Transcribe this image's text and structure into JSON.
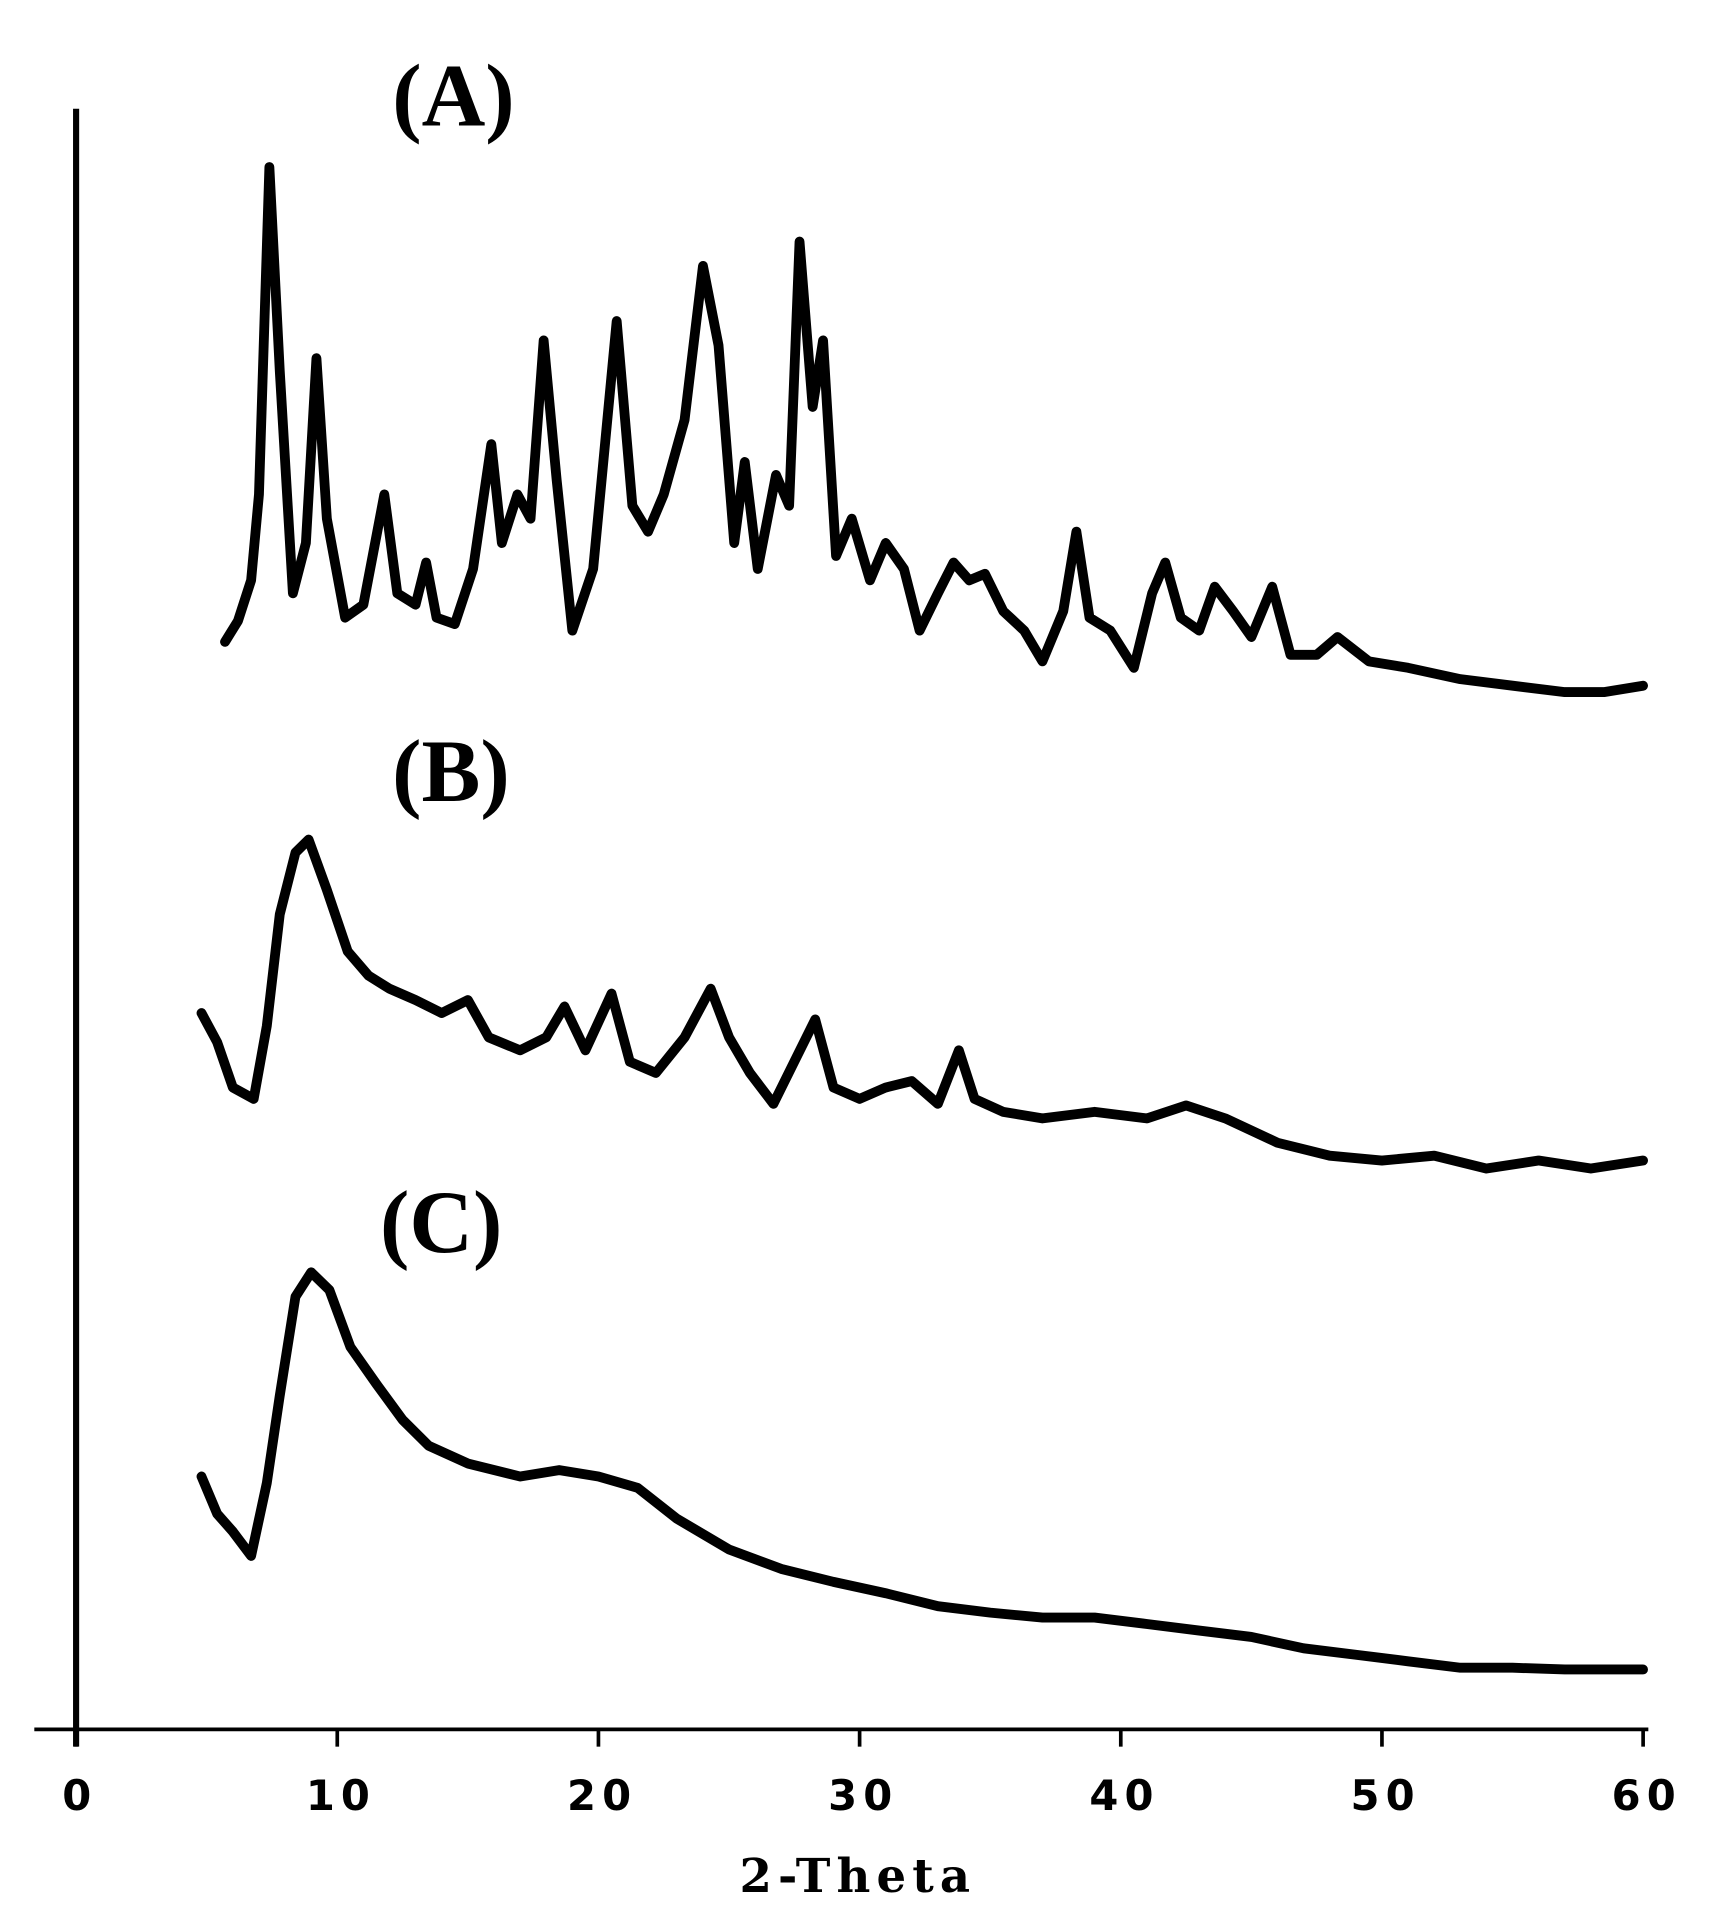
{
  "chart_data": {
    "type": "line",
    "x_label": "2-Theta",
    "xlim": [
      -1.6,
      60.2
    ],
    "xticks": [
      0,
      10,
      20,
      30,
      40,
      50,
      60
    ],
    "ylim": [
      0,
      100
    ],
    "series": [
      {
        "name": "(A)",
        "color": "#000000",
        "x": [
          5.7,
          6.2,
          6.7,
          7.0,
          7.4,
          7.8,
          8.3,
          8.8,
          9.2,
          9.6,
          10.3,
          11.0,
          11.8,
          12.3,
          13.0,
          13.4,
          13.8,
          14.5,
          15.2,
          15.9,
          16.3,
          16.9,
          17.4,
          17.9,
          18.4,
          19.0,
          19.8,
          20.7,
          21.3,
          21.9,
          22.5,
          23.3,
          24.0,
          24.6,
          25.2,
          25.6,
          26.1,
          26.8,
          27.3,
          27.7,
          28.2,
          28.6,
          29.1,
          29.7,
          30.4,
          31.0,
          31.7,
          32.3,
          33.0,
          33.6,
          34.2,
          34.8,
          35.5,
          36.3,
          37.0,
          37.8,
          38.3,
          38.8,
          39.6,
          40.5,
          41.2,
          41.7,
          42.3,
          43.0,
          43.6,
          44.3,
          45.0,
          45.8,
          46.5,
          47.5,
          48.3,
          49.5,
          51,
          53,
          55,
          57,
          58.5,
          60
        ],
        "values": [
          67.1,
          68.4,
          70.9,
          76.2,
          96.4,
          83.8,
          70.1,
          73.2,
          84.6,
          74.7,
          68.6,
          69.4,
          76.2,
          70.1,
          69.4,
          72.0,
          68.6,
          68.2,
          71.6,
          79.3,
          73.2,
          76.2,
          74.7,
          85.7,
          77.1,
          67.8,
          71.6,
          86.9,
          75.5,
          73.9,
          76.2,
          80.8,
          90.3,
          85.4,
          73.2,
          78.2,
          71.6,
          77.4,
          75.5,
          91.8,
          81.6,
          85.7,
          72.4,
          74.7,
          70.9,
          73.2,
          71.6,
          67.8,
          70.1,
          72.0,
          70.9,
          71.3,
          69.0,
          67.8,
          65.9,
          69.0,
          73.9,
          68.6,
          67.8,
          65.5,
          70.1,
          72.0,
          68.6,
          67.8,
          70.5,
          69.0,
          67.4,
          70.5,
          66.3,
          66.3,
          67.4,
          65.9,
          65.5,
          64.8,
          64.4,
          64.0,
          64.0,
          64.4
        ]
      },
      {
        "name": "(B)",
        "color": "#000000",
        "x": [
          4.8,
          5.4,
          6.0,
          6.8,
          7.3,
          7.8,
          8.4,
          8.9,
          9.6,
          10.4,
          11.2,
          12.0,
          13.0,
          14.0,
          15.0,
          15.8,
          17.0,
          18.0,
          18.7,
          19.5,
          20.5,
          21.2,
          22.2,
          23.3,
          24.3,
          25.0,
          25.8,
          26.7,
          27.5,
          28.3,
          29.0,
          30.0,
          31.0,
          32.0,
          33.0,
          33.8,
          34.4,
          35.5,
          37,
          39,
          41,
          42.5,
          44,
          46,
          48,
          50,
          52,
          54,
          56,
          58,
          60
        ],
        "values": [
          44.2,
          42.4,
          39.6,
          38.9,
          43.4,
          50.3,
          54.1,
          54.9,
          51.8,
          48.0,
          46.5,
          45.7,
          45.0,
          44.2,
          45.0,
          42.7,
          41.9,
          42.7,
          44.6,
          41.9,
          45.4,
          41.2,
          40.5,
          42.7,
          45.7,
          42.7,
          40.5,
          38.6,
          41.2,
          43.8,
          39.6,
          38.9,
          39.6,
          40.0,
          38.6,
          41.9,
          38.9,
          38.1,
          37.7,
          38.1,
          37.7,
          38.5,
          37.7,
          36.2,
          35.4,
          35.1,
          35.4,
          34.6,
          35.1,
          34.6,
          35.1
        ]
      },
      {
        "name": "(C)",
        "color": "#000000",
        "x": [
          4.8,
          5.4,
          6.0,
          6.7,
          7.3,
          7.8,
          8.4,
          9.0,
          9.7,
          10.5,
          11.5,
          12.5,
          13.5,
          15,
          17,
          18.5,
          20,
          21.5,
          23,
          25,
          27,
          29,
          31,
          33,
          35,
          37,
          39,
          41,
          43,
          45,
          47,
          49,
          51,
          53,
          55,
          57,
          60
        ],
        "values": [
          15.6,
          13.3,
          12.2,
          10.7,
          15.2,
          20.6,
          26.7,
          28.2,
          27.1,
          23.6,
          21.3,
          19.1,
          17.5,
          16.4,
          15.6,
          16.0,
          15.6,
          14.9,
          13.0,
          11.1,
          9.9,
          9.1,
          8.4,
          7.6,
          7.2,
          6.9,
          6.9,
          6.5,
          6.1,
          5.7,
          5.0,
          4.6,
          4.2,
          3.8,
          3.8,
          3.7,
          3.7
        ]
      }
    ]
  }
}
